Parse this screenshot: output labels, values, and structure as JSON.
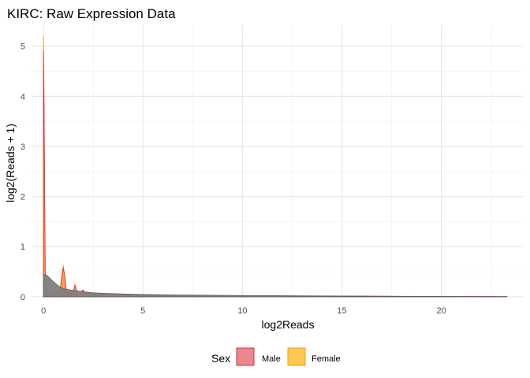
{
  "chart_data": {
    "type": "area",
    "title": "KIRC: Raw Expression Data",
    "xlabel": "log2Reads",
    "ylabel": "log2(Reads + 1)",
    "xlim": [
      -0.6,
      24.1
    ],
    "ylim": [
      -0.05,
      5.42
    ],
    "x_ticks": [
      0,
      5,
      10,
      15,
      20
    ],
    "y_ticks": [
      0,
      1,
      2,
      3,
      4,
      5
    ],
    "grid": true,
    "legend": {
      "title": "Sex",
      "position": "bottom",
      "entries": [
        {
          "label": "Male",
          "fill": "#e8888d",
          "stroke": "#d6303f"
        },
        {
          "label": "Female",
          "fill": "#ffc857",
          "stroke": "#f4a000"
        }
      ]
    },
    "colors": {
      "male_fill": "#e0707a",
      "male_stroke": "#d6303f",
      "female_fill": "#ffb020",
      "female_stroke": "#f39c12",
      "overlap_fill": "#808080",
      "overlap_stroke": "#606060"
    },
    "series": [
      {
        "name": "Female",
        "x": [
          0,
          0.02,
          0.06,
          0.09,
          0.15,
          0.3,
          0.6,
          0.85,
          0.95,
          1.0,
          1.06,
          1.15,
          1.3,
          1.45,
          1.55,
          1.58,
          1.62,
          1.7,
          1.85,
          1.95,
          2.0,
          2.05,
          2.15,
          2.5,
          3,
          4,
          5,
          7,
          10,
          13,
          16,
          20,
          23.3
        ],
        "y": [
          5.2,
          4.5,
          2.2,
          0.5,
          0.25,
          0.1,
          0.07,
          0.2,
          0.52,
          0.62,
          0.45,
          0.12,
          0.08,
          0.07,
          0.18,
          0.25,
          0.2,
          0.08,
          0.07,
          0.13,
          0.14,
          0.09,
          0.07,
          0.06,
          0.05,
          0.04,
          0.03,
          0.025,
          0.02,
          0.015,
          0.01,
          0.005,
          0.002
        ]
      },
      {
        "name": "Male",
        "x": [
          0,
          0.02,
          0.06,
          0.09,
          0.15,
          0.3,
          0.6,
          0.85,
          0.95,
          1.0,
          1.06,
          1.15,
          1.3,
          1.45,
          1.55,
          1.58,
          1.62,
          1.7,
          1.85,
          1.95,
          2.0,
          2.05,
          2.15,
          2.5,
          3,
          4,
          5,
          7,
          10,
          13,
          16,
          20,
          23.3
        ],
        "y": [
          4.9,
          4.2,
          2.0,
          0.47,
          0.24,
          0.1,
          0.07,
          0.19,
          0.48,
          0.57,
          0.42,
          0.11,
          0.08,
          0.07,
          0.17,
          0.23,
          0.19,
          0.08,
          0.07,
          0.12,
          0.13,
          0.09,
          0.07,
          0.06,
          0.05,
          0.04,
          0.03,
          0.025,
          0.02,
          0.015,
          0.01,
          0.005,
          0.002
        ]
      },
      {
        "name": "",
        "x": [
          0,
          0.2,
          0.5,
          0.8,
          1.0,
          1.3,
          1.6,
          2.0,
          2.5,
          3,
          4,
          5,
          7,
          10,
          13,
          16,
          20,
          23.3
        ],
        "y": [
          0.45,
          0.42,
          0.3,
          0.2,
          0.16,
          0.14,
          0.12,
          0.1,
          0.08,
          0.07,
          0.055,
          0.045,
          0.035,
          0.025,
          0.018,
          0.012,
          0.006,
          0.002
        ]
      }
    ]
  }
}
